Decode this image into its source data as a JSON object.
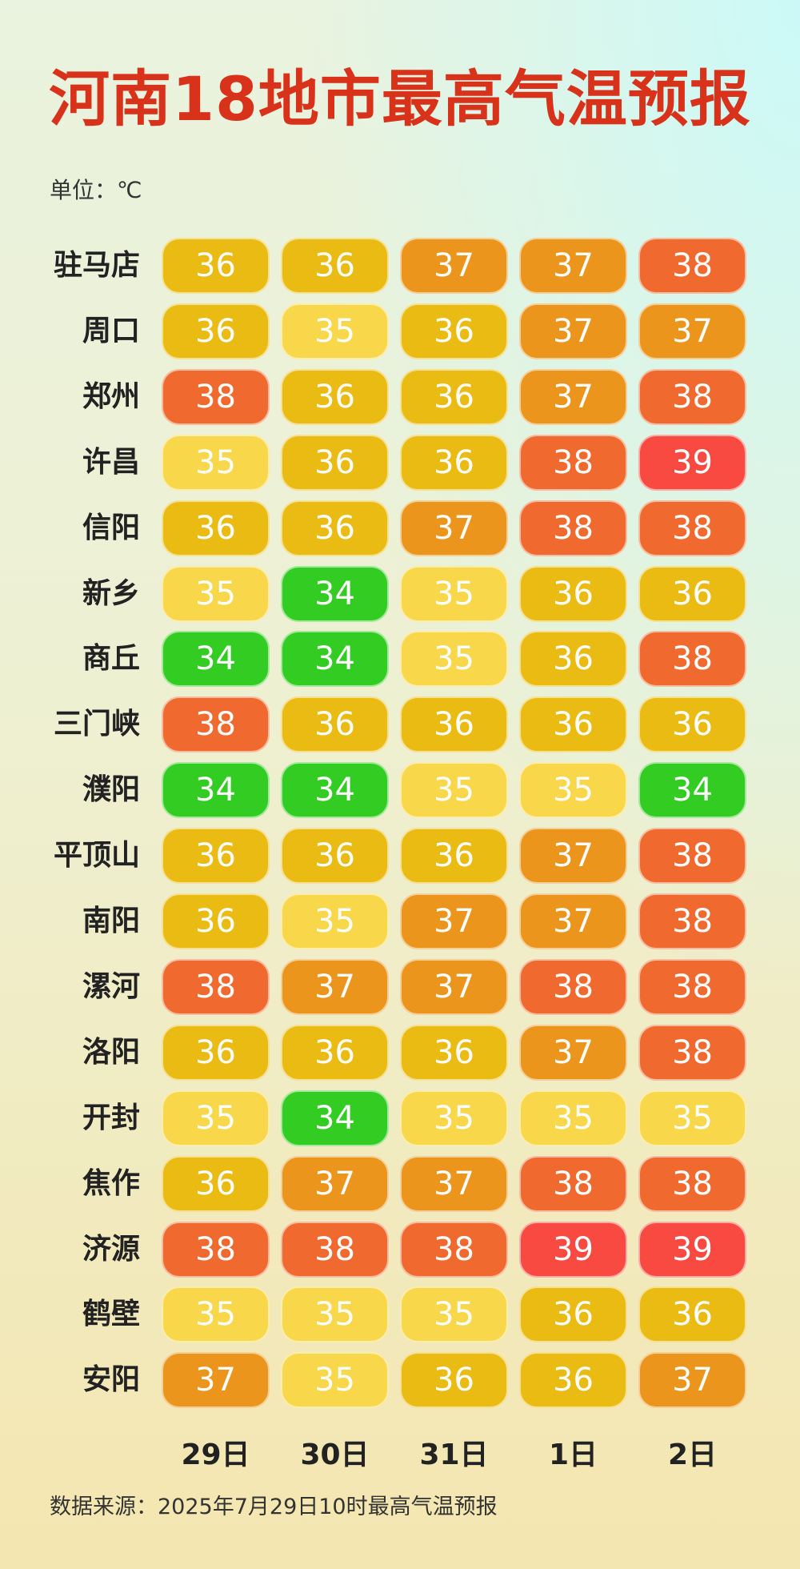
{
  "title": "河南18地市最高气温预报",
  "unit": "单位：℃",
  "source": "数据来源：2025年7月29日10时最高气温预报",
  "colors": {
    "34": "#33cc22",
    "35": "#f8d84a",
    "36": "#eabb12",
    "37": "#ec951c",
    "38": "#f06a30",
    "39": "#f84a40"
  },
  "chart_data": {
    "type": "table",
    "columns": [
      "29日",
      "30日",
      "31日",
      "1日",
      "2日"
    ],
    "rows": [
      {
        "city": "驻马店",
        "values": [
          36,
          36,
          37,
          37,
          38
        ]
      },
      {
        "city": "周口",
        "values": [
          36,
          35,
          36,
          37,
          37
        ]
      },
      {
        "city": "郑州",
        "values": [
          38,
          36,
          36,
          37,
          38
        ]
      },
      {
        "city": "许昌",
        "values": [
          35,
          36,
          36,
          38,
          39
        ]
      },
      {
        "city": "信阳",
        "values": [
          36,
          36,
          37,
          38,
          38
        ]
      },
      {
        "city": "新乡",
        "values": [
          35,
          34,
          35,
          36,
          36
        ]
      },
      {
        "city": "商丘",
        "values": [
          34,
          34,
          35,
          36,
          38
        ]
      },
      {
        "city": "三门峡",
        "values": [
          38,
          36,
          36,
          36,
          36
        ]
      },
      {
        "city": "濮阳",
        "values": [
          34,
          34,
          35,
          35,
          34
        ]
      },
      {
        "city": "平顶山",
        "values": [
          36,
          36,
          36,
          37,
          38
        ]
      },
      {
        "city": "南阳",
        "values": [
          36,
          35,
          37,
          37,
          38
        ]
      },
      {
        "city": "漯河",
        "values": [
          38,
          37,
          37,
          38,
          38
        ]
      },
      {
        "city": "洛阳",
        "values": [
          36,
          36,
          36,
          37,
          38
        ]
      },
      {
        "city": "开封",
        "values": [
          35,
          34,
          35,
          35,
          35
        ]
      },
      {
        "city": "焦作",
        "values": [
          36,
          37,
          37,
          38,
          38
        ]
      },
      {
        "city": "济源",
        "values": [
          38,
          38,
          38,
          39,
          39
        ]
      },
      {
        "city": "鹤壁",
        "values": [
          35,
          35,
          35,
          36,
          36
        ]
      },
      {
        "city": "安阳",
        "values": [
          37,
          35,
          36,
          36,
          37
        ]
      }
    ]
  }
}
